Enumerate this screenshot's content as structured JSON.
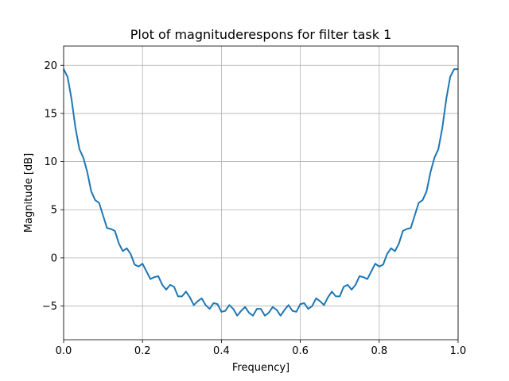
{
  "chart_data": {
    "type": "line",
    "title": "Plot of magnituderespons for filter task 1",
    "xlabel": "Frequency]",
    "ylabel": "Magnitude [dB]",
    "xlim": [
      0,
      1
    ],
    "ylim": [
      -8.5,
      22
    ],
    "xticks": [
      0,
      0.2,
      0.4,
      0.6,
      0.8,
      1
    ],
    "xtick_labels": [
      "0.0",
      "0.2",
      "0.4",
      "0.6",
      "0.8",
      "1.0"
    ],
    "yticks": [
      -5,
      0,
      5,
      10,
      15,
      20
    ],
    "ytick_labels": [
      "−5",
      "0",
      "5",
      "10",
      "15",
      "20"
    ],
    "grid": true,
    "series": [
      {
        "color": "#1f77b4",
        "x": [
          0.0,
          0.01,
          0.02,
          0.03,
          0.04,
          0.05,
          0.06,
          0.07,
          0.08,
          0.09,
          0.1,
          0.11,
          0.12,
          0.13,
          0.14,
          0.15,
          0.16,
          0.17,
          0.18,
          0.19,
          0.2,
          0.21,
          0.22,
          0.23,
          0.24,
          0.25,
          0.26,
          0.27,
          0.28,
          0.29,
          0.3,
          0.31,
          0.32,
          0.33,
          0.34,
          0.35,
          0.36,
          0.37,
          0.38,
          0.39,
          0.4,
          0.41,
          0.42,
          0.43,
          0.44,
          0.45,
          0.46,
          0.47,
          0.48,
          0.49,
          0.5,
          0.51,
          0.52,
          0.53,
          0.54,
          0.55,
          0.56,
          0.57,
          0.58,
          0.59,
          0.6,
          0.61,
          0.62,
          0.63,
          0.64,
          0.65,
          0.66,
          0.67,
          0.68,
          0.69,
          0.7,
          0.71,
          0.72,
          0.73,
          0.74,
          0.75,
          0.76,
          0.77,
          0.78,
          0.79,
          0.8,
          0.81,
          0.82,
          0.83,
          0.84,
          0.85,
          0.86,
          0.87,
          0.88,
          0.89,
          0.9,
          0.91,
          0.92,
          0.93,
          0.94,
          0.95,
          0.96,
          0.97,
          0.98,
          0.99,
          1.0
        ],
        "y": [
          19.6,
          18.8,
          16.5,
          13.5,
          11.3,
          10.4,
          8.9,
          6.9,
          6.0,
          5.7,
          4.4,
          3.1,
          3.0,
          2.8,
          1.5,
          0.7,
          1.0,
          0.4,
          -0.7,
          -0.9,
          -0.6,
          -1.4,
          -2.2,
          -2.0,
          -1.9,
          -2.8,
          -3.3,
          -2.8,
          -3.0,
          -4.0,
          -4.0,
          -3.5,
          -4.1,
          -4.9,
          -4.5,
          -4.2,
          -4.9,
          -5.3,
          -4.7,
          -4.8,
          -5.6,
          -5.5,
          -4.9,
          -5.3,
          -6.0,
          -5.5,
          -5.1,
          -5.7,
          -6.0,
          -5.3,
          -5.3,
          -6.0,
          -5.7,
          -5.1,
          -5.4,
          -6.0,
          -5.4,
          -4.9,
          -5.5,
          -5.6,
          -4.8,
          -4.7,
          -5.3,
          -5.0,
          -4.2,
          -4.5,
          -4.9,
          -4.1,
          -3.5,
          -4.0,
          -4.0,
          -3.0,
          -2.8,
          -3.3,
          -2.8,
          -1.9,
          -2.0,
          -2.2,
          -1.4,
          -0.6,
          -0.9,
          -0.7,
          0.4,
          1.0,
          0.7,
          1.5,
          2.8,
          3.0,
          3.1,
          4.4,
          5.7,
          6.0,
          6.9,
          8.9,
          10.4,
          11.3,
          13.5,
          16.5,
          18.8,
          19.6,
          19.6
        ]
      }
    ]
  }
}
